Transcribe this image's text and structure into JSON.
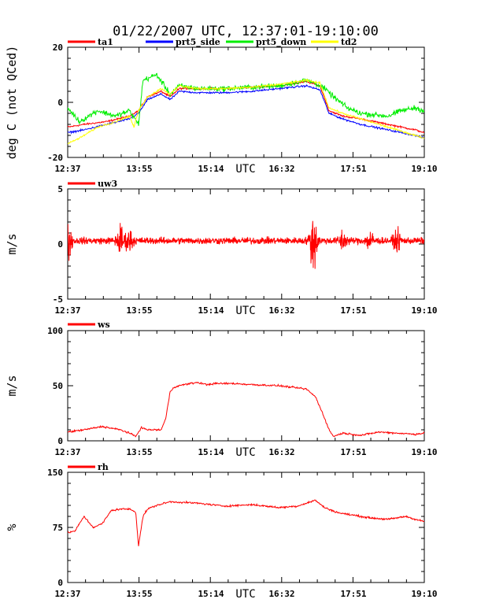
{
  "title": "01/22/2007  UTC, 12:37:01-19:10:00",
  "x_unit_label": "UTC",
  "x_tick_labels": [
    "12:37",
    "13:55",
    "15:14",
    "16:32",
    "17:51",
    "19:10"
  ],
  "chart_data": [
    {
      "type": "line",
      "ylabel": "deg C (not QCed)",
      "ylim": [
        -20,
        20
      ],
      "y_ticks": [
        -20,
        0,
        20
      ],
      "x_range": [
        "12:37",
        "19:10"
      ],
      "series": [
        {
          "name": "ta1",
          "color": "#ff0000",
          "x": [
            "12:37",
            "12:55",
            "13:20",
            "13:45",
            "13:55",
            "14:05",
            "14:20",
            "14:30",
            "14:40",
            "15:00",
            "15:30",
            "16:00",
            "16:30",
            "17:00",
            "17:15",
            "17:25",
            "17:40",
            "18:00",
            "18:30",
            "19:00",
            "19:10"
          ],
          "values": [
            -9,
            -8,
            -7,
            -5,
            -3,
            2,
            4,
            2,
            5,
            5,
            5,
            5.5,
            6,
            7.5,
            6,
            -3,
            -5,
            -6,
            -8,
            -10,
            -11
          ]
        },
        {
          "name": "prt5_side",
          "color": "#0000ff",
          "x": [
            "12:37",
            "12:55",
            "13:20",
            "13:45",
            "13:55",
            "14:05",
            "14:20",
            "14:30",
            "14:40",
            "15:00",
            "15:30",
            "16:00",
            "16:30",
            "17:00",
            "17:15",
            "17:25",
            "17:40",
            "18:00",
            "18:30",
            "19:00",
            "19:10"
          ],
          "values": [
            -11,
            -10,
            -8,
            -6,
            -4,
            1,
            3,
            1,
            4,
            3.5,
            3.5,
            4,
            5,
            6,
            4.5,
            -4,
            -6,
            -8,
            -10,
            -12,
            -13
          ]
        },
        {
          "name": "prt5_down",
          "color": "#00ee00",
          "x": [
            "12:37",
            "12:50",
            "13:10",
            "13:30",
            "13:45",
            "13:55",
            "14:00",
            "14:15",
            "14:30",
            "14:40",
            "15:00",
            "15:30",
            "16:00",
            "16:30",
            "17:00",
            "17:10",
            "17:20",
            "17:30",
            "17:45",
            "18:00",
            "18:30",
            "18:45",
            "19:00",
            "19:10"
          ],
          "values": [
            -2,
            -7,
            -3,
            -5,
            -3,
            -8,
            8,
            10,
            3,
            6,
            5,
            5,
            5.5,
            6,
            8,
            7,
            5,
            2,
            -2,
            -4,
            -5,
            -3,
            -2,
            -3
          ]
        },
        {
          "name": "td2",
          "color": "#ffff00",
          "x": [
            "12:37",
            "12:50",
            "13:10",
            "13:30",
            "13:45",
            "13:50",
            "13:55",
            "14:05",
            "14:20",
            "14:30",
            "14:40",
            "15:00",
            "15:30",
            "16:00",
            "16:30",
            "17:00",
            "17:15",
            "17:25",
            "17:40",
            "18:00",
            "18:30",
            "19:00",
            "19:10"
          ],
          "values": [
            -15,
            -13,
            -9,
            -7,
            -5,
            -9,
            -3,
            2,
            5,
            3,
            6,
            5,
            5,
            5.5,
            6.5,
            8,
            7,
            -2,
            -4,
            -6,
            -9,
            -12,
            -13
          ]
        }
      ]
    },
    {
      "type": "line",
      "ylabel": "m/s",
      "ylim": [
        -5,
        5
      ],
      "y_ticks": [
        -5,
        0,
        5
      ],
      "x_range": [
        "12:37",
        "19:10"
      ],
      "series": [
        {
          "name": "uw3",
          "color": "#ff0000",
          "baseline": 0.3,
          "noise_amp": 0.45,
          "bursts": [
            {
              "x": "12:37",
              "amp": 2.6
            },
            {
              "x": "13:35",
              "amp": 1.9
            },
            {
              "x": "13:45",
              "amp": 1.3
            },
            {
              "x": "17:08",
              "amp": 3.9
            },
            {
              "x": "17:40",
              "amp": 1.2
            },
            {
              "x": "18:10",
              "amp": 1.2
            },
            {
              "x": "18:40",
              "amp": 1.1
            }
          ]
        }
      ]
    },
    {
      "type": "line",
      "ylabel": "m/s",
      "ylim": [
        0,
        100
      ],
      "y_ticks": [
        0,
        50,
        100
      ],
      "x_range": [
        "12:37",
        "19:10"
      ],
      "series": [
        {
          "name": "ws",
          "color": "#ff0000",
          "x": [
            "12:37",
            "12:55",
            "13:15",
            "13:35",
            "13:45",
            "13:52",
            "13:58",
            "14:05",
            "14:20",
            "14:25",
            "14:30",
            "14:35",
            "14:45",
            "15:00",
            "15:10",
            "15:20",
            "15:40",
            "16:00",
            "16:30",
            "17:00",
            "17:10",
            "17:18",
            "17:25",
            "17:30",
            "17:40",
            "18:00",
            "18:20",
            "18:40",
            "19:00",
            "19:10"
          ],
          "values": [
            8,
            10,
            13,
            10,
            7,
            4,
            12,
            10,
            10,
            20,
            45,
            49,
            51,
            53,
            51,
            52,
            52,
            51,
            50,
            47,
            40,
            25,
            10,
            4,
            7,
            5,
            8,
            7,
            6,
            7
          ]
        }
      ]
    },
    {
      "type": "line",
      "ylabel": "%",
      "ylim": [
        0,
        150
      ],
      "y_ticks": [
        0,
        75,
        150
      ],
      "x_range": [
        "12:37",
        "19:10"
      ],
      "series": [
        {
          "name": "rh",
          "color": "#ff0000",
          "x": [
            "12:37",
            "12:45",
            "12:55",
            "13:05",
            "13:15",
            "13:25",
            "13:35",
            "13:45",
            "13:52",
            "13:55",
            "14:00",
            "14:05",
            "14:15",
            "14:30",
            "15:00",
            "15:30",
            "16:00",
            "16:30",
            "16:50",
            "17:00",
            "17:10",
            "17:20",
            "17:35",
            "17:50",
            "18:10",
            "18:30",
            "18:50",
            "19:00",
            "19:10"
          ],
          "values": [
            68,
            70,
            90,
            75,
            80,
            98,
            100,
            100,
            96,
            50,
            90,
            100,
            105,
            110,
            108,
            104,
            106,
            102,
            104,
            108,
            112,
            102,
            95,
            92,
            88,
            86,
            90,
            86,
            83
          ]
        }
      ]
    }
  ]
}
